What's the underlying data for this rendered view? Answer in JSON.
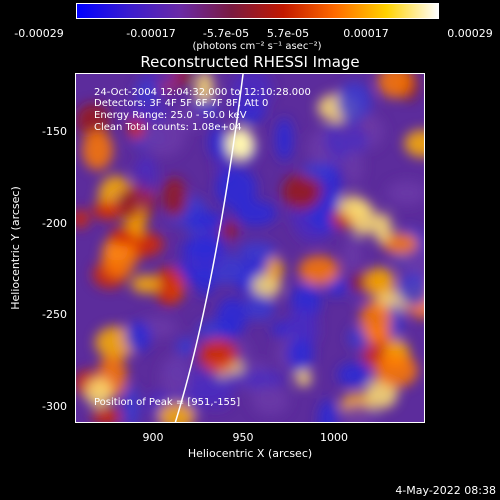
{
  "colorbar": {
    "tick_labels": [
      "-0.00029",
      "-0.00017",
      "-5.7e-05",
      "5.7e-05",
      "0.00017",
      "0.00029"
    ],
    "units": "(photons cm⁻² s⁻¹ asec⁻²)",
    "colors": [
      "#0000ff",
      "#3a1ccf",
      "#6a2aa6",
      "#7a1a40",
      "#c21800",
      "#ff6a00",
      "#ffd200",
      "#ffffff"
    ]
  },
  "title": "Reconstructed RHESSI Image",
  "info": {
    "time_range": "24-Oct-2004 12:04:32.000 to 12:10:28.000",
    "detectors": "Detectors: 3F 4F 5F 6F 7F 8F, Att 0",
    "energy_range": "Energy Range: 25.0 - 50.0 keV",
    "clean": "Clean    Total counts: 1.08e+04",
    "peak": "Position of Peak = [951,-155]"
  },
  "axes": {
    "xlabel": "Heliocentric X (arcsec)",
    "ylabel": "Heliocentric Y (arcsec)",
    "xticks": [
      "900",
      "950",
      "1000"
    ],
    "yticks": [
      "-150",
      "-200",
      "-250",
      "-300"
    ],
    "xlim": [
      862,
      1048
    ],
    "ylim": [
      -310,
      -124
    ]
  },
  "limb_line": {
    "color": "#ffffff"
  },
  "timestamp": "4-May-2022 08:38"
}
